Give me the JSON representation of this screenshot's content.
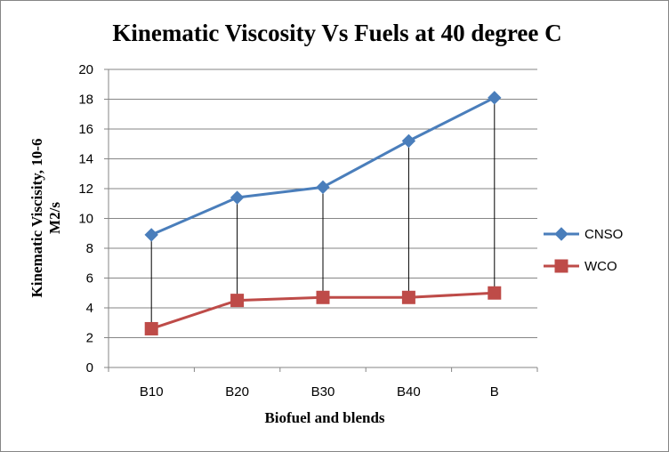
{
  "chart_data": {
    "type": "line",
    "title": "Kinematic Viscosity  Vs Fuels at 40 degree  C",
    "xlabel": "Biofuel and blends",
    "ylabel_line1": "Kinematic Viscisity, 10-6",
    "ylabel_line2": "M2/s",
    "categories": [
      "B10",
      "B20",
      "B30",
      "B40",
      "B"
    ],
    "ylim": [
      0,
      20
    ],
    "yticks": [
      0,
      2,
      4,
      6,
      8,
      10,
      12,
      14,
      16,
      18,
      20
    ],
    "grid": true,
    "legend_position": "right",
    "drop_lines": true,
    "series": [
      {
        "name": "CNSO",
        "values": [
          8.9,
          11.4,
          12.1,
          15.2,
          18.1
        ],
        "color": "#4a7ebb",
        "marker": "diamond"
      },
      {
        "name": "WCO",
        "values": [
          2.6,
          4.5,
          4.7,
          4.7,
          5.0
        ],
        "color": "#be4b48",
        "marker": "square"
      }
    ]
  }
}
